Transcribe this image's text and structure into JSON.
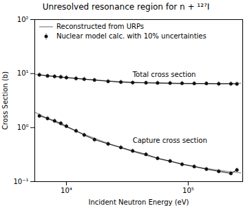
{
  "chart_data": {
    "type": "line",
    "title": "Unresolved resonance region for n + ¹²⁷I",
    "xlabel": "Incident Neutron Energy (eV)",
    "ylabel": "Cross Section (b)",
    "log": true,
    "grid": false,
    "legend": "upper left",
    "xlim": [
      5500,
      280000
    ],
    "ylim": [
      0.1,
      100
    ],
    "xticks": [
      {
        "value": 10000,
        "label": "10⁴"
      },
      {
        "value": 100000,
        "label": "10⁵"
      }
    ],
    "yticks": [
      {
        "value": 0.1,
        "label": "10⁻¹"
      },
      {
        "value": 1,
        "label": "10⁰"
      },
      {
        "value": 10,
        "label": "10¹"
      },
      {
        "value": 100,
        "label": "10²"
      }
    ],
    "series": [
      {
        "name": "Reconstructed from URPs",
        "color": "#999999",
        "x": [
          5500,
          7000,
          9000,
          12000,
          15000,
          20000,
          25000,
          30000,
          40000,
          50000,
          60000,
          80000,
          100000,
          130000,
          160000,
          200000,
          240000,
          270000
        ],
        "values": [
          9.664,
          9.108,
          8.606,
          8.115,
          7.79,
          7.435,
          7.203,
          7.041,
          6.829,
          6.7,
          6.617,
          6.523,
          6.481,
          6.465,
          6.478,
          6.517,
          6.569,
          6.613
        ]
      },
      {
        "name": "Reconstructed from URPs",
        "color": "#999999",
        "x": [
          5500,
          7000,
          9000,
          12000,
          15000,
          20000,
          25000,
          30000,
          40000,
          50000,
          60000,
          80000,
          100000,
          130000,
          160000,
          200000,
          240000,
          270000
        ],
        "values": [
          1.926,
          1.48,
          1.142,
          0.864,
          0.705,
          0.552,
          0.463,
          0.404,
          0.332,
          0.288,
          0.259,
          0.223,
          0.201,
          0.18,
          0.168,
          0.156,
          0.149,
          0.145
        ]
      },
      {
        "name": "Nuclear model calc. with 10% uncertainties",
        "color": "#111111",
        "marker": "circle",
        "x": [
          6000,
          7000,
          8000,
          9000,
          10000,
          12000,
          14000,
          17000,
          22000,
          28000,
          35000,
          45000,
          56000,
          71000,
          89000,
          112000,
          141000,
          178000,
          224000,
          251000
        ],
        "values": [
          9.5,
          9.1,
          8.85,
          8.65,
          8.45,
          8.15,
          7.9,
          7.6,
          7.2,
          6.95,
          6.8,
          6.75,
          6.7,
          6.65,
          6.6,
          6.58,
          6.55,
          6.5,
          6.5,
          6.45
        ],
        "error": {
          "color": "#999999",
          "values": [
            0.95,
            0.91,
            0.885,
            0.865,
            0.845,
            0.815,
            0.79,
            0.76,
            0.72,
            0.695,
            0.68,
            0.675,
            0.67,
            0.665,
            0.66,
            0.658,
            0.655,
            0.65,
            0.65,
            0.645
          ]
        }
      },
      {
        "name": "Nuclear model calc. with 10% uncertainties",
        "color": "#111111",
        "marker": "circle",
        "x": [
          6000,
          7000,
          8000,
          9000,
          10000,
          12000,
          14000,
          17000,
          22000,
          28000,
          35000,
          45000,
          56000,
          71000,
          89000,
          112000,
          141000,
          178000,
          224000,
          251000
        ],
        "values": [
          1.65,
          1.48,
          1.33,
          1.2,
          1.06,
          0.87,
          0.73,
          0.6,
          0.5,
          0.43,
          0.37,
          0.32,
          0.27,
          0.24,
          0.21,
          0.19,
          0.17,
          0.155,
          0.142,
          0.165
        ],
        "error": {
          "color": "#999999",
          "values": [
            0.165,
            0.148,
            0.133,
            0.12,
            0.106,
            0.087,
            0.073,
            0.06,
            0.05,
            0.043,
            0.037,
            0.032,
            0.027,
            0.024,
            0.021,
            0.019,
            0.017,
            0.0155,
            0.0142,
            0.0165
          ]
        }
      }
    ],
    "annotations": [
      {
        "text": "Total cross section",
        "x": 35000,
        "y": 9.5
      },
      {
        "text": "Capture cross section",
        "x": 35000,
        "y": 0.58
      }
    ]
  }
}
